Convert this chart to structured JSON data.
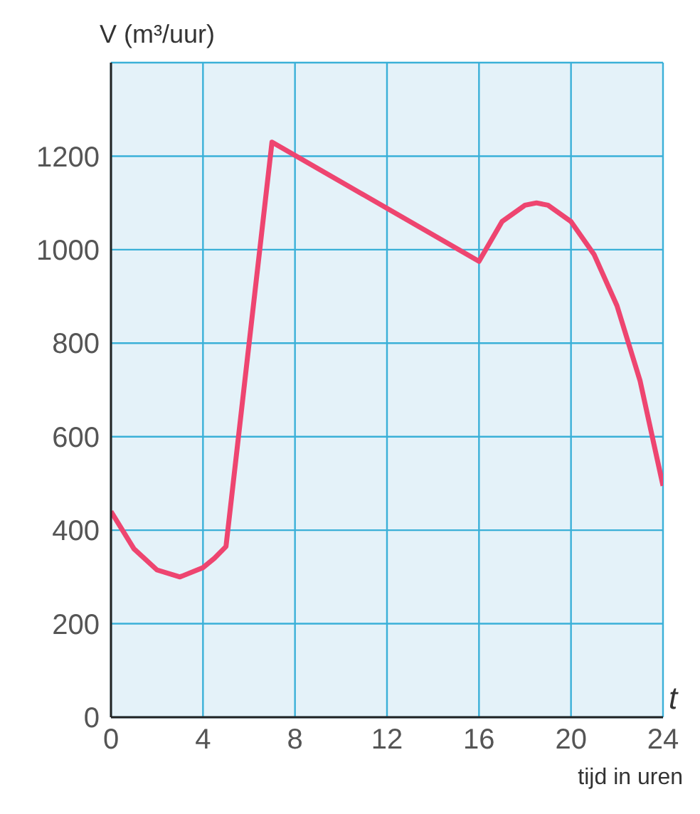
{
  "chart_data": {
    "type": "line",
    "ylabel": "V (m³/uur)",
    "xlabel": "t",
    "annotations": [
      "tijd in uren"
    ],
    "x": [
      0,
      1,
      2,
      3,
      4,
      4.5,
      5,
      7,
      16,
      17,
      18,
      18.5,
      19,
      20,
      21,
      22,
      23,
      24
    ],
    "series": [
      {
        "color": "#ee4570",
        "values": [
          440,
          360,
          315,
          300,
          320,
          340,
          365,
          1230,
          975,
          1060,
          1095,
          1100,
          1095,
          1060,
          990,
          880,
          720,
          495
        ]
      }
    ],
    "xlim": [
      0,
      24
    ],
    "xticks": [
      0,
      4,
      8,
      12,
      16,
      20,
      24
    ],
    "ylim": [
      0,
      1400
    ],
    "yticks": [
      0,
      200,
      400,
      600,
      800,
      1000,
      1200
    ],
    "grid": true,
    "marker": "none",
    "line_style": "solid"
  }
}
